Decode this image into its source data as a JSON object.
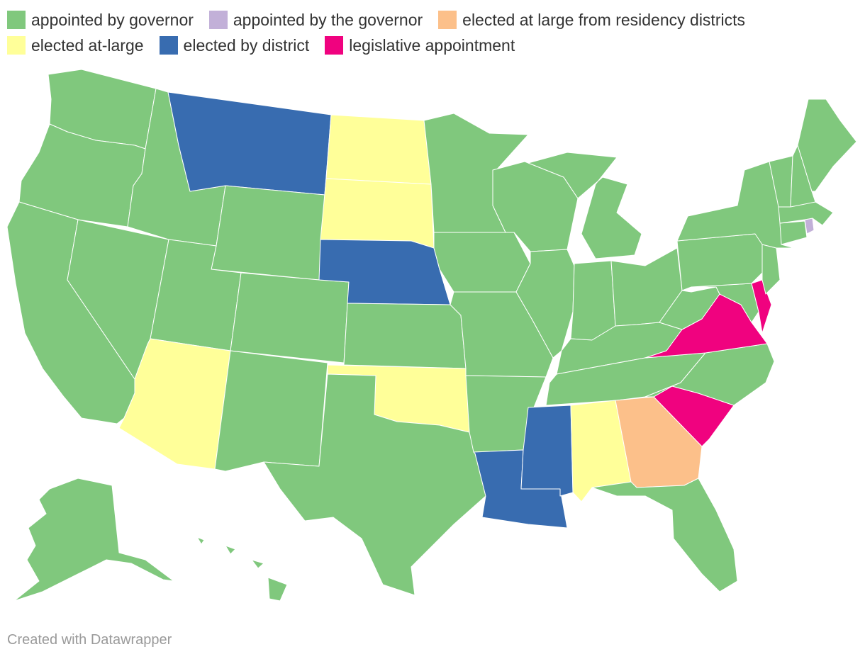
{
  "legend": {
    "rows": [
      [
        {
          "label": "appointed by governor",
          "color": "#80c87d"
        },
        {
          "label": "appointed by the governor",
          "color": "#c2b0d8"
        },
        {
          "label": "elected at large from residency districts",
          "color": "#fcc08a"
        }
      ],
      [
        {
          "label": "elected at-large",
          "color": "#ffff99"
        },
        {
          "label": "elected by district",
          "color": "#386cb0"
        },
        {
          "label": "legislative appointment",
          "color": "#f0027f"
        }
      ]
    ]
  },
  "credit": "Created with Datawrapper",
  "states": [
    {
      "name": "Washington",
      "category": "appointed by governor"
    },
    {
      "name": "Oregon",
      "category": "appointed by governor"
    },
    {
      "name": "California",
      "category": "appointed by governor"
    },
    {
      "name": "Nevada",
      "category": "appointed by governor"
    },
    {
      "name": "Idaho",
      "category": "appointed by governor"
    },
    {
      "name": "Montana",
      "category": "elected by district"
    },
    {
      "name": "Wyoming",
      "category": "appointed by governor"
    },
    {
      "name": "Utah",
      "category": "appointed by governor"
    },
    {
      "name": "Arizona",
      "category": "elected at-large"
    },
    {
      "name": "Colorado",
      "category": "appointed by governor"
    },
    {
      "name": "New Mexico",
      "category": "appointed by governor"
    },
    {
      "name": "North Dakota",
      "category": "elected at-large"
    },
    {
      "name": "South Dakota",
      "category": "elected at-large"
    },
    {
      "name": "Nebraska",
      "category": "elected by district"
    },
    {
      "name": "Kansas",
      "category": "appointed by governor"
    },
    {
      "name": "Oklahoma",
      "category": "elected at-large"
    },
    {
      "name": "Texas",
      "category": "appointed by governor"
    },
    {
      "name": "Minnesota",
      "category": "appointed by governor"
    },
    {
      "name": "Iowa",
      "category": "appointed by governor"
    },
    {
      "name": "Missouri",
      "category": "appointed by governor"
    },
    {
      "name": "Arkansas",
      "category": "appointed by governor"
    },
    {
      "name": "Louisiana",
      "category": "elected by district"
    },
    {
      "name": "Wisconsin",
      "category": "appointed by governor"
    },
    {
      "name": "Illinois",
      "category": "appointed by governor"
    },
    {
      "name": "Michigan",
      "category": "appointed by governor"
    },
    {
      "name": "Indiana",
      "category": "appointed by governor"
    },
    {
      "name": "Ohio",
      "category": "appointed by governor"
    },
    {
      "name": "Kentucky",
      "category": "appointed by governor"
    },
    {
      "name": "Tennessee",
      "category": "appointed by governor"
    },
    {
      "name": "Mississippi",
      "category": "elected by district"
    },
    {
      "name": "Alabama",
      "category": "elected at-large"
    },
    {
      "name": "Georgia",
      "category": "elected at large from residency districts"
    },
    {
      "name": "Florida",
      "category": "appointed by governor"
    },
    {
      "name": "South Carolina",
      "category": "legislative appointment"
    },
    {
      "name": "North Carolina",
      "category": "appointed by governor"
    },
    {
      "name": "Virginia",
      "category": "legislative appointment"
    },
    {
      "name": "West Virginia",
      "category": "appointed by governor"
    },
    {
      "name": "Maryland",
      "category": "appointed by governor"
    },
    {
      "name": "Delaware",
      "category": "legislative appointment"
    },
    {
      "name": "Pennsylvania",
      "category": "appointed by governor"
    },
    {
      "name": "New Jersey",
      "category": "appointed by governor"
    },
    {
      "name": "New York",
      "category": "appointed by governor"
    },
    {
      "name": "Connecticut",
      "category": "appointed by governor"
    },
    {
      "name": "Rhode Island",
      "category": "appointed by the governor"
    },
    {
      "name": "Massachusetts",
      "category": "appointed by governor"
    },
    {
      "name": "Vermont",
      "category": "appointed by governor"
    },
    {
      "name": "New Hampshire",
      "category": "appointed by governor"
    },
    {
      "name": "Maine",
      "category": "appointed by governor"
    },
    {
      "name": "Alaska",
      "category": "appointed by governor"
    },
    {
      "name": "Hawaii",
      "category": "appointed by governor"
    }
  ]
}
